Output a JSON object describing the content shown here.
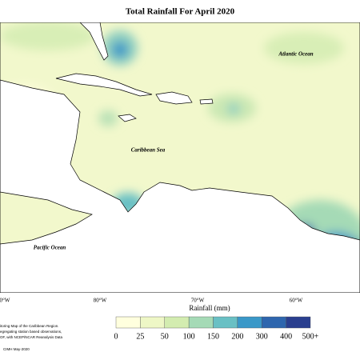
{
  "title": "Total Rainfall For April 2020",
  "ocean_labels": [
    "Atlantic Ocean",
    "Caribbean Sea",
    "Pacific Ocean"
  ],
  "longitude_labels": [
    "0°W",
    "80°W",
    "70°W",
    "60°W"
  ],
  "legend": {
    "title": "Rainfall (mm)",
    "labels": [
      "0",
      "25",
      "50",
      "100",
      "150",
      "200",
      "300",
      "400",
      "500+"
    ],
    "colors": [
      "#ffffde",
      "#eef7c6",
      "#d3ecb0",
      "#a5dab6",
      "#69c0c4",
      "#3a98c8",
      "#2e66ae",
      "#2a3f8f",
      "#141f5c"
    ]
  },
  "notes": [
    "itoring Map of the Caribbean Region.",
    "egregating station based observations,",
    "OF, with NCEP/NCAR Reanalysis Data",
    "CIMH May-2020"
  ]
}
